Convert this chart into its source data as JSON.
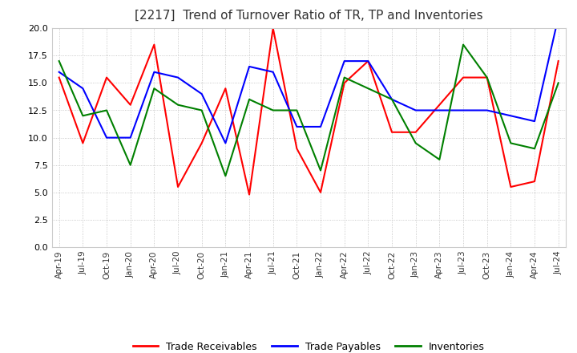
{
  "title": "[2217]  Trend of Turnover Ratio of TR, TP and Inventories",
  "title_fontsize": 11,
  "ylim": [
    0,
    20.0
  ],
  "yticks": [
    0.0,
    2.5,
    5.0,
    7.5,
    10.0,
    12.5,
    15.0,
    17.5,
    20.0
  ],
  "legend_labels": [
    "Trade Receivables",
    "Trade Payables",
    "Inventories"
  ],
  "line_colors": [
    "#ff0000",
    "#0000ff",
    "#008000"
  ],
  "background_color": "#ffffff",
  "grid_color": "#bbbbbb",
  "x_labels": [
    "Apr-19",
    "Jul-19",
    "Oct-19",
    "Jan-20",
    "Apr-20",
    "Jul-20",
    "Oct-20",
    "Jan-21",
    "Apr-21",
    "Jul-21",
    "Oct-21",
    "Jan-22",
    "Apr-22",
    "Jul-22",
    "Oct-22",
    "Jan-23",
    "Apr-23",
    "Jul-23",
    "Oct-23",
    "Jan-24",
    "Apr-24",
    "Jul-24"
  ],
  "trade_receivables": [
    15.5,
    9.5,
    15.5,
    13.0,
    18.5,
    5.5,
    9.5,
    14.5,
    4.8,
    20.0,
    9.0,
    5.0,
    15.0,
    17.0,
    10.5,
    10.5,
    13.0,
    15.5,
    15.5,
    5.5,
    6.0,
    17.0
  ],
  "trade_payables": [
    16.0,
    14.5,
    10.0,
    10.0,
    16.0,
    15.5,
    14.0,
    9.5,
    16.5,
    16.0,
    11.0,
    11.0,
    17.0,
    17.0,
    13.5,
    12.5,
    12.5,
    12.5,
    12.5,
    12.0,
    11.5,
    21.0
  ],
  "inventories": [
    17.0,
    12.0,
    12.5,
    7.5,
    14.5,
    13.0,
    12.5,
    6.5,
    13.5,
    12.5,
    12.5,
    7.0,
    15.5,
    14.5,
    13.5,
    9.5,
    8.0,
    18.5,
    15.5,
    9.5,
    9.0,
    15.0
  ]
}
